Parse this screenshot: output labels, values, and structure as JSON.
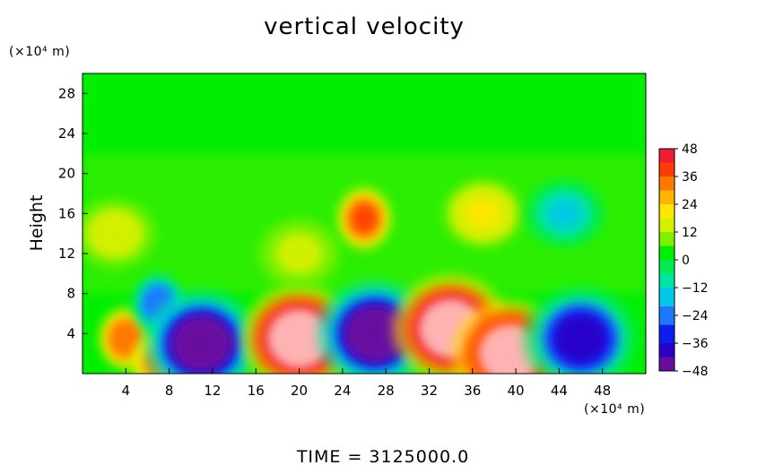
{
  "chart_data": {
    "type": "heatmap",
    "title": "vertical velocity",
    "ylabel": "Height",
    "x_unit_label": "(×10⁴ m)",
    "y_unit_label": "(×10⁴ m)",
    "footer": "TIME  =  3125000.0",
    "xlim": [
      0,
      52
    ],
    "ylim": [
      0,
      30
    ],
    "x_ticks": [
      "4",
      "8",
      "12",
      "16",
      "20",
      "24",
      "28",
      "32",
      "36",
      "40",
      "44",
      "48"
    ],
    "x_tick_values": [
      4,
      8,
      12,
      16,
      20,
      24,
      28,
      32,
      36,
      40,
      44,
      48
    ],
    "y_ticks": [
      "4",
      "8",
      "12",
      "16",
      "20",
      "24",
      "28"
    ],
    "y_tick_values": [
      4,
      8,
      12,
      16,
      20,
      24,
      28
    ],
    "colorbar": {
      "range": [
        -48,
        48
      ],
      "ticks": [
        "48",
        "36",
        "24",
        "12",
        "0",
        "−12",
        "−24",
        "−36",
        "−48"
      ],
      "tick_values": [
        48,
        36,
        24,
        12,
        0,
        -12,
        -24,
        -36,
        -48
      ]
    },
    "background_value": 0,
    "features": [
      {
        "x": 4.0,
        "y": 3.5,
        "value": 30
      },
      {
        "x": 7.0,
        "y": 1.0,
        "value": 28
      },
      {
        "x": 7.0,
        "y": 7.0,
        "value": -35
      },
      {
        "x": 11.0,
        "y": 3.0,
        "value": -60
      },
      {
        "x": 20.0,
        "y": 3.5,
        "value": 60
      },
      {
        "x": 27.0,
        "y": 4.0,
        "value": -60
      },
      {
        "x": 34.0,
        "y": 4.5,
        "value": 60
      },
      {
        "x": 39.5,
        "y": 2.0,
        "value": 55
      },
      {
        "x": 46.0,
        "y": 3.5,
        "value": -45
      },
      {
        "x": 26.0,
        "y": 15.5,
        "value": 35
      },
      {
        "x": 37.0,
        "y": 16.0,
        "value": 14
      },
      {
        "x": 44.5,
        "y": 16.0,
        "value": -20
      },
      {
        "x": 20.0,
        "y": 12.0,
        "value": 8
      },
      {
        "x": 3.0,
        "y": 14.0,
        "value": 10
      }
    ]
  }
}
